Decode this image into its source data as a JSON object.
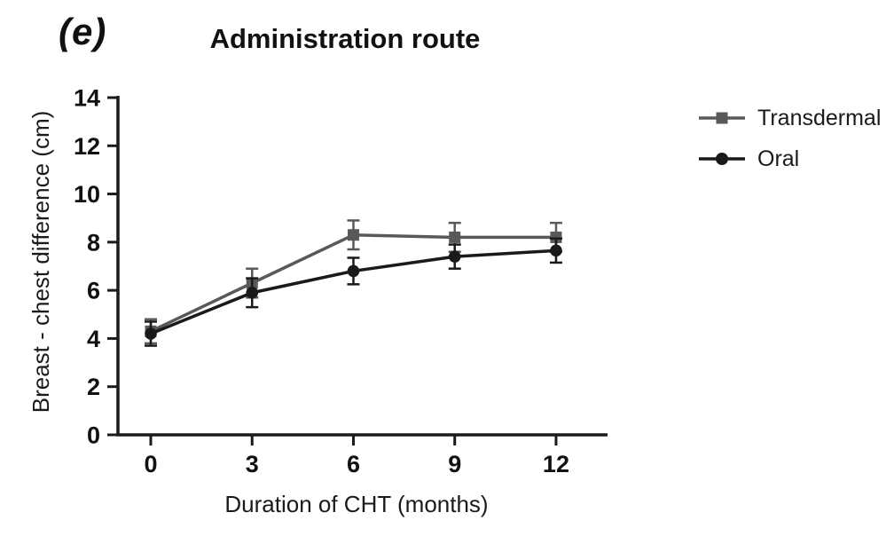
{
  "panel_label": "(e)",
  "title": "Administration route",
  "legend": {
    "items": [
      {
        "label": "Transdermal",
        "marker": "square",
        "color": "#595959"
      },
      {
        "label": "Oral",
        "marker": "circle",
        "color": "#1a1a1a"
      }
    ]
  },
  "chart_data": {
    "type": "line",
    "title": "Administration route",
    "xlabel": "Duration of CHT (months)",
    "ylabel": "Breast - chest difference (cm)",
    "x": [
      0,
      3,
      6,
      9,
      12
    ],
    "xticks": [
      "0",
      "3",
      "6",
      "9",
      "12"
    ],
    "yticks": [
      "0",
      "2",
      "4",
      "6",
      "8",
      "10",
      "12",
      "14"
    ],
    "ytick_values": [
      0,
      2,
      4,
      6,
      8,
      10,
      12,
      14
    ],
    "ylim": [
      0,
      14
    ],
    "grid": false,
    "legend_position": "right",
    "error_bars": true,
    "axis_color": "#1a1a1a",
    "series": [
      {
        "name": "Transdermal",
        "marker": "square",
        "color": "#595959",
        "values": [
          4.3,
          6.3,
          8.3,
          8.2,
          8.2
        ],
        "errors": [
          0.5,
          0.6,
          0.6,
          0.6,
          0.6
        ]
      },
      {
        "name": "Oral",
        "marker": "circle",
        "color": "#1a1a1a",
        "values": [
          4.2,
          5.9,
          6.8,
          7.4,
          7.65
        ],
        "errors": [
          0.5,
          0.6,
          0.55,
          0.5,
          0.5
        ]
      }
    ]
  }
}
